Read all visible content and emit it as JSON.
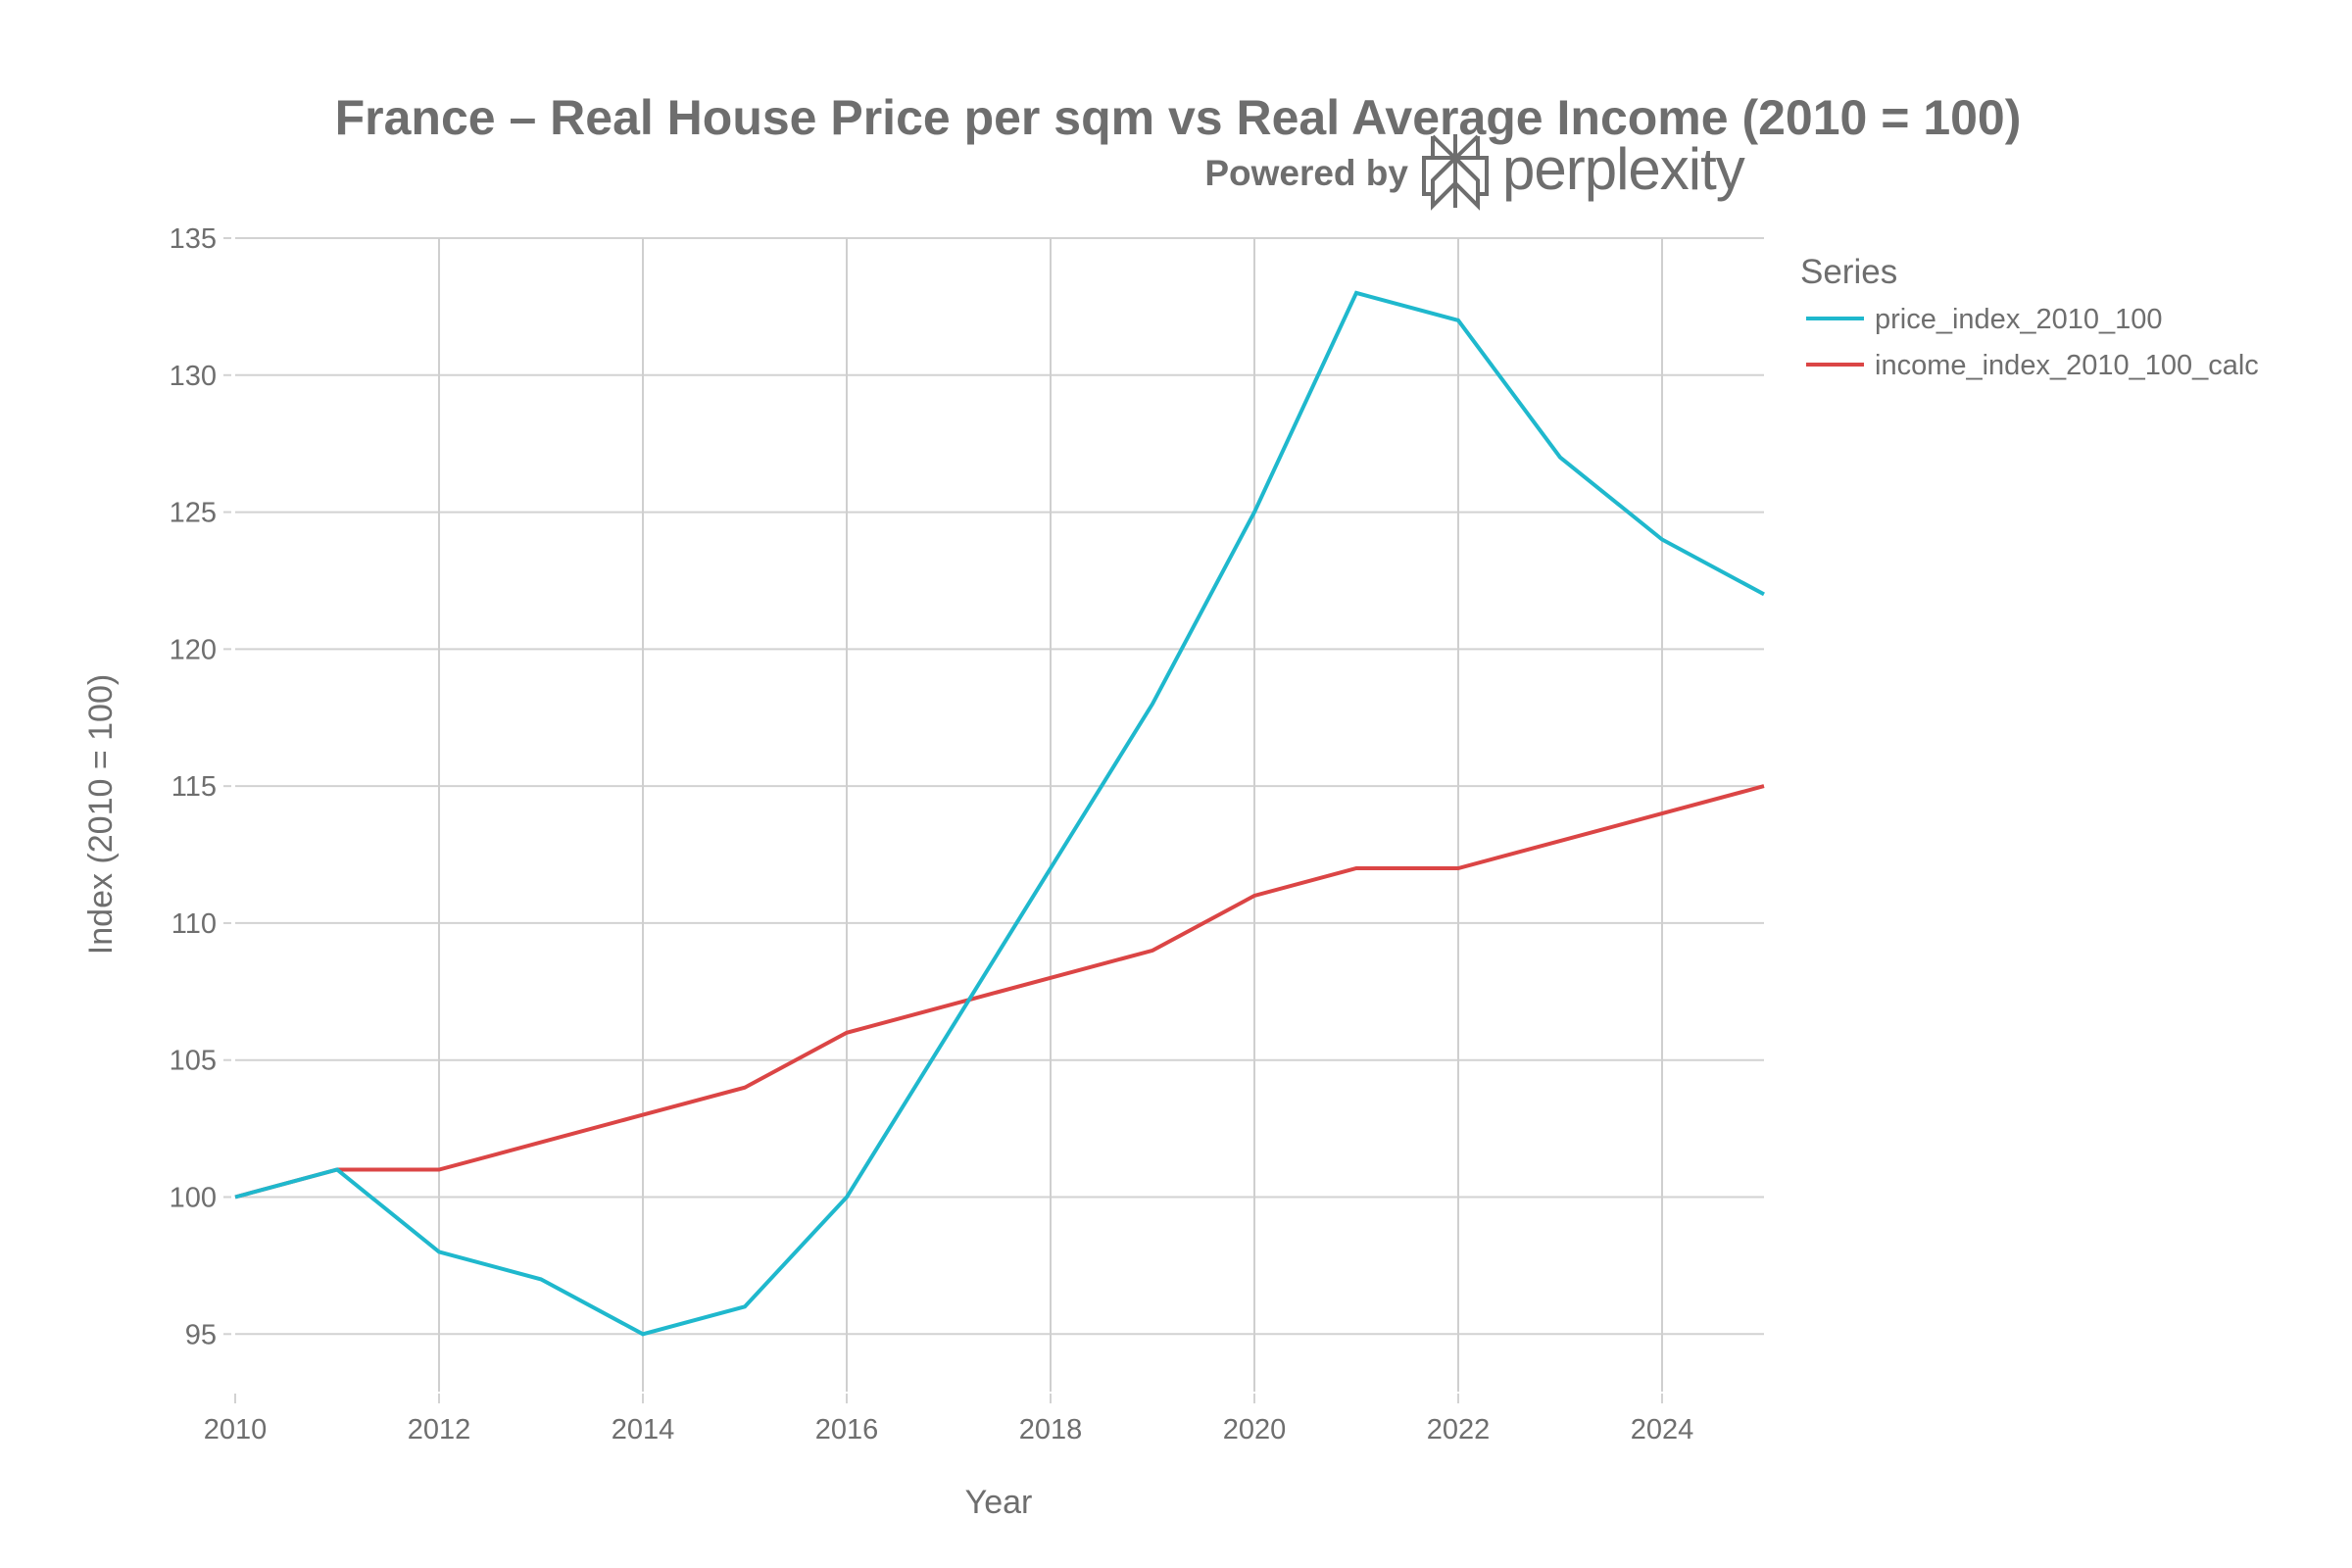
{
  "chart_data": {
    "type": "line",
    "title": "France – Real House Price per sqm vs Real Average Income (2010 = 100)",
    "subtitle": "Powered by perplexity",
    "xlabel": "Year",
    "ylabel": "Index (2010 = 100)",
    "x": [
      2010,
      2011,
      2012,
      2013,
      2014,
      2015,
      2016,
      2017,
      2018,
      2019,
      2020,
      2021,
      2022,
      2023,
      2024,
      2025
    ],
    "series": [
      {
        "name": "price_index_2010_100",
        "color": "#1fb8cd",
        "values": [
          100,
          101,
          98,
          97,
          95,
          96,
          100,
          106,
          112,
          118,
          125,
          133,
          132,
          127,
          124,
          122
        ]
      },
      {
        "name": "income_index_2010_100_calc",
        "color": "#db4545",
        "values": [
          100,
          101,
          101,
          102,
          103,
          104,
          106,
          107,
          108,
          109,
          111,
          112,
          112,
          113,
          114,
          115
        ]
      }
    ],
    "xlim": [
      2010,
      2025
    ],
    "ylim": [
      92.9,
      135
    ],
    "xticks": [
      2010,
      2012,
      2014,
      2016,
      2018,
      2020,
      2022,
      2024
    ],
    "xtick_labels": [
      "2010",
      "2012",
      "2014",
      "2016",
      "2018",
      "2020",
      "2022",
      "2024"
    ],
    "yticks": [
      95,
      100,
      105,
      110,
      115,
      120,
      125,
      130,
      135
    ],
    "ytick_labels": [
      "95",
      "100",
      "105",
      "110",
      "115",
      "120",
      "125",
      "130",
      "135"
    ],
    "grid": true,
    "legend": {
      "title": "Series",
      "position": "right",
      "entries": [
        "price_index_2010_100",
        "income_index_2010_100_calc"
      ]
    }
  },
  "branding": {
    "powered_by_label": "Powered by",
    "brand_name": "perplexity",
    "logo_icon": "perplexity-logo-icon"
  }
}
